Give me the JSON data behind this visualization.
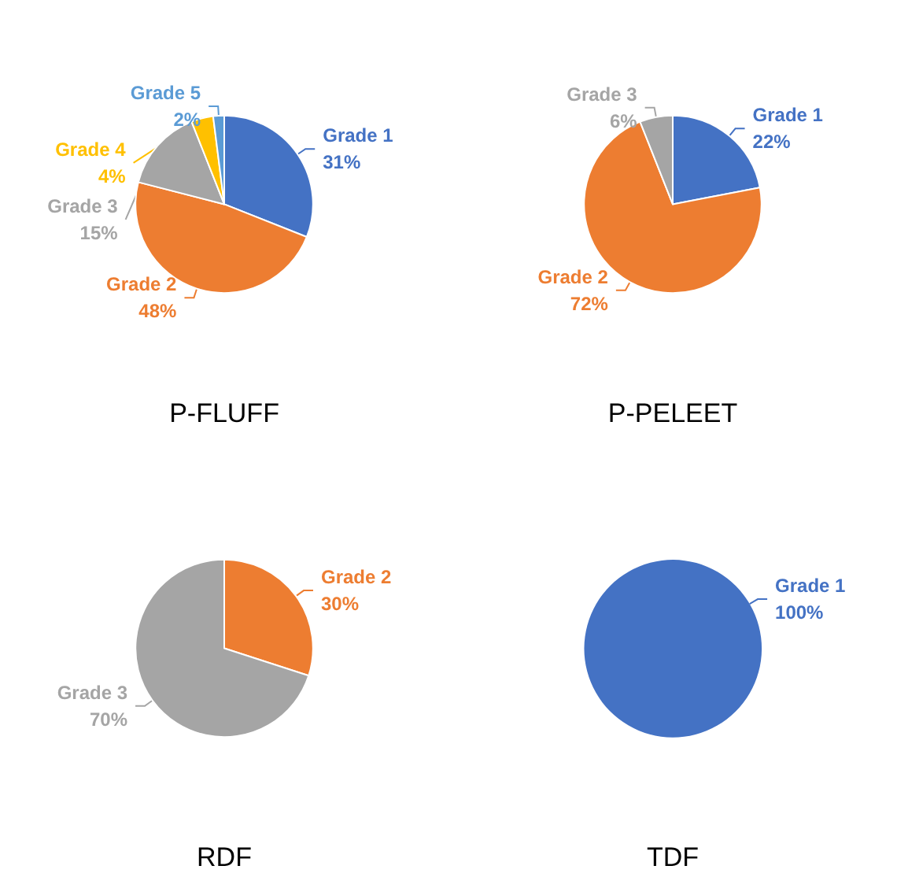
{
  "chart_data": [
    {
      "type": "pie",
      "title": "P-FLUFF",
      "categories": [
        "Grade 1",
        "Grade 2",
        "Grade 3",
        "Grade 4",
        "Grade 5"
      ],
      "values": [
        31,
        48,
        15,
        4,
        2
      ],
      "value_labels": [
        "31%",
        "48%",
        "15%",
        "4%",
        "2%"
      ],
      "colors": [
        "#4472c4",
        "#ed7d31",
        "#a5a5a5",
        "#ffc000",
        "#5b9bd5"
      ],
      "legend": false
    },
    {
      "type": "pie",
      "title": "P-PELEET",
      "categories": [
        "Grade 1",
        "Grade 2",
        "Grade 3"
      ],
      "values": [
        22,
        72,
        6
      ],
      "value_labels": [
        "22%",
        "72%",
        "6%"
      ],
      "colors": [
        "#4472c4",
        "#ed7d31",
        "#a5a5a5"
      ],
      "legend": false
    },
    {
      "type": "pie",
      "title": "RDF",
      "categories": [
        "Grade 2",
        "Grade 3"
      ],
      "values": [
        30,
        70
      ],
      "value_labels": [
        "30%",
        "70%"
      ],
      "colors": [
        "#ed7d31",
        "#a5a5a5"
      ],
      "legend": false
    },
    {
      "type": "pie",
      "title": "TDF",
      "categories": [
        "Grade 1"
      ],
      "values": [
        100
      ],
      "value_labels": [
        "100%"
      ],
      "colors": [
        "#4472c4"
      ],
      "legend": false
    }
  ]
}
